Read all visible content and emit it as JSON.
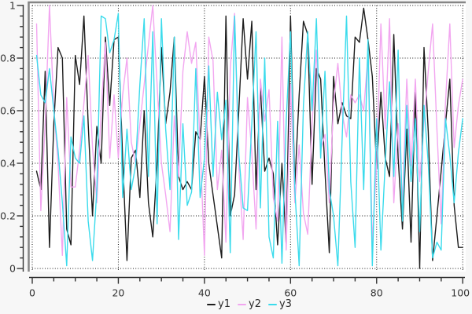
{
  "figure": {
    "background": "#f7f7f7",
    "plot_background": "#ffffff",
    "frame_color": "#858585",
    "grid_color": "#1a1a1a",
    "axis_color": "#333333",
    "tick_label_color": "#333333",
    "legend_text_color": "#2a2a2a"
  },
  "chart_data": {
    "type": "line",
    "title": "",
    "xlabel": "",
    "ylabel": "",
    "xlim": [
      0,
      100
    ],
    "ylim": [
      0,
      1
    ],
    "x_start": 1,
    "grid": true,
    "grid_style": "dotted",
    "legend_position": "bottom-center",
    "x_ticks": [
      0,
      20,
      40,
      60,
      80,
      100
    ],
    "x_tick_labels": [
      "0",
      "20",
      "40",
      "60",
      "80",
      "100"
    ],
    "x_minor_step": 5,
    "y_ticks": [
      0,
      0.2,
      0.4,
      0.6,
      0.8,
      1
    ],
    "y_tick_labels": [
      "0",
      "0.2",
      "0.4",
      "0.6",
      "0.8",
      "1"
    ],
    "y_minor_step": 0.04,
    "series": [
      {
        "name": "y1",
        "color": "#1c1c1c",
        "values": [
          0.37,
          0.3,
          0.75,
          0.08,
          0.55,
          0.84,
          0.8,
          0.15,
          0.09,
          0.81,
          0.7,
          0.96,
          0.55,
          0.2,
          0.54,
          0.4,
          0.88,
          0.62,
          0.87,
          0.88,
          0.42,
          0.03,
          0.42,
          0.45,
          0.27,
          0.6,
          0.25,
          0.12,
          0.4,
          0.84,
          0.55,
          0.67,
          0.88,
          0.35,
          0.3,
          0.33,
          0.3,
          0.52,
          0.49,
          0.73,
          0.4,
          0.28,
          0.16,
          0.04,
          0.96,
          0.2,
          0.28,
          0.61,
          0.95,
          0.72,
          0.94,
          0.3,
          0.69,
          0.37,
          0.42,
          0.36,
          0.09,
          0.4,
          0.09,
          0.96,
          0.32,
          0.66,
          0.94,
          0.89,
          0.32,
          0.76,
          0.72,
          0.37,
          0.06,
          0.73,
          0.55,
          0.63,
          0.58,
          0.57,
          0.88,
          0.86,
          0.99,
          0.87,
          0.73,
          0.38,
          0.67,
          0.42,
          0.35,
          0.89,
          0.42,
          0.15,
          0.53,
          0.1,
          0.67,
          0.0,
          0.84,
          0.52,
          0.03,
          0.2,
          0.37,
          0.55,
          0.72,
          0.24,
          0.08,
          0.08
        ]
      },
      {
        "name": "y2",
        "color": "#f2a6f0",
        "values": [
          0.93,
          0.22,
          0.55,
          1.0,
          0.61,
          0.4,
          0.05,
          0.65,
          0.31,
          0.31,
          0.45,
          0.63,
          0.81,
          0.46,
          0.25,
          0.6,
          0.86,
          0.42,
          0.66,
          0.42,
          0.66,
          0.8,
          0.48,
          0.4,
          0.55,
          0.7,
          0.85,
          1.0,
          0.7,
          0.4,
          0.28,
          0.14,
          0.58,
          0.35,
          0.75,
          0.9,
          0.78,
          0.86,
          0.47,
          0.05,
          0.88,
          0.79,
          0.3,
          0.45,
          0.1,
          0.76,
          0.97,
          0.38,
          0.11,
          0.65,
          0.44,
          0.15,
          0.72,
          0.56,
          0.68,
          0.27,
          0.18,
          0.88,
          0.07,
          0.7,
          0.25,
          0.47,
          0.21,
          0.13,
          0.55,
          0.83,
          0.45,
          0.51,
          0.25,
          0.63,
          0.78,
          0.59,
          0.5,
          0.66,
          0.63,
          0.66,
          0.6,
          0.81,
          0.1,
          0.4,
          0.93,
          0.53,
          0.95,
          0.25,
          0.55,
          0.25,
          0.72,
          0.39,
          0.72,
          0.33,
          0.56,
          0.75,
          0.93,
          0.53,
          0.17,
          0.63,
          0.93,
          0.46,
          0.62,
          0.72
        ]
      },
      {
        "name": "y3",
        "color": "#3bdbec",
        "values": [
          0.81,
          0.66,
          0.63,
          0.76,
          0.6,
          0.45,
          0.25,
          0.01,
          0.5,
          0.42,
          0.4,
          0.58,
          0.18,
          0.03,
          0.3,
          0.96,
          0.95,
          0.82,
          0.87,
          0.97,
          0.27,
          0.53,
          0.3,
          0.39,
          0.7,
          0.95,
          0.35,
          0.9,
          0.17,
          0.95,
          0.53,
          0.3,
          0.88,
          0.11,
          0.55,
          0.24,
          0.29,
          0.76,
          0.27,
          0.42,
          0.77,
          0.35,
          0.67,
          0.49,
          0.64,
          0.06,
          0.96,
          0.43,
          0.23,
          0.22,
          0.55,
          0.9,
          0.23,
          0.8,
          0.12,
          0.04,
          0.56,
          0.02,
          0.56,
          0.9,
          0.3,
          0.01,
          0.62,
          0.9,
          0.6,
          0.95,
          0.42,
          0.75,
          0.3,
          0.2,
          0.01,
          0.5,
          0.96,
          0.33,
          0.08,
          0.8,
          0.3,
          0.87,
          0.01,
          0.57,
          0.07,
          0.4,
          0.71,
          0.35,
          0.83,
          0.18,
          0.62,
          0.33,
          0.57,
          0.14,
          0.62,
          0.4,
          0.04,
          0.1,
          0.07,
          0.57,
          0.43,
          0.25,
          0.44,
          0.57
        ]
      }
    ]
  },
  "legend": {
    "dash_glyph": "—"
  }
}
